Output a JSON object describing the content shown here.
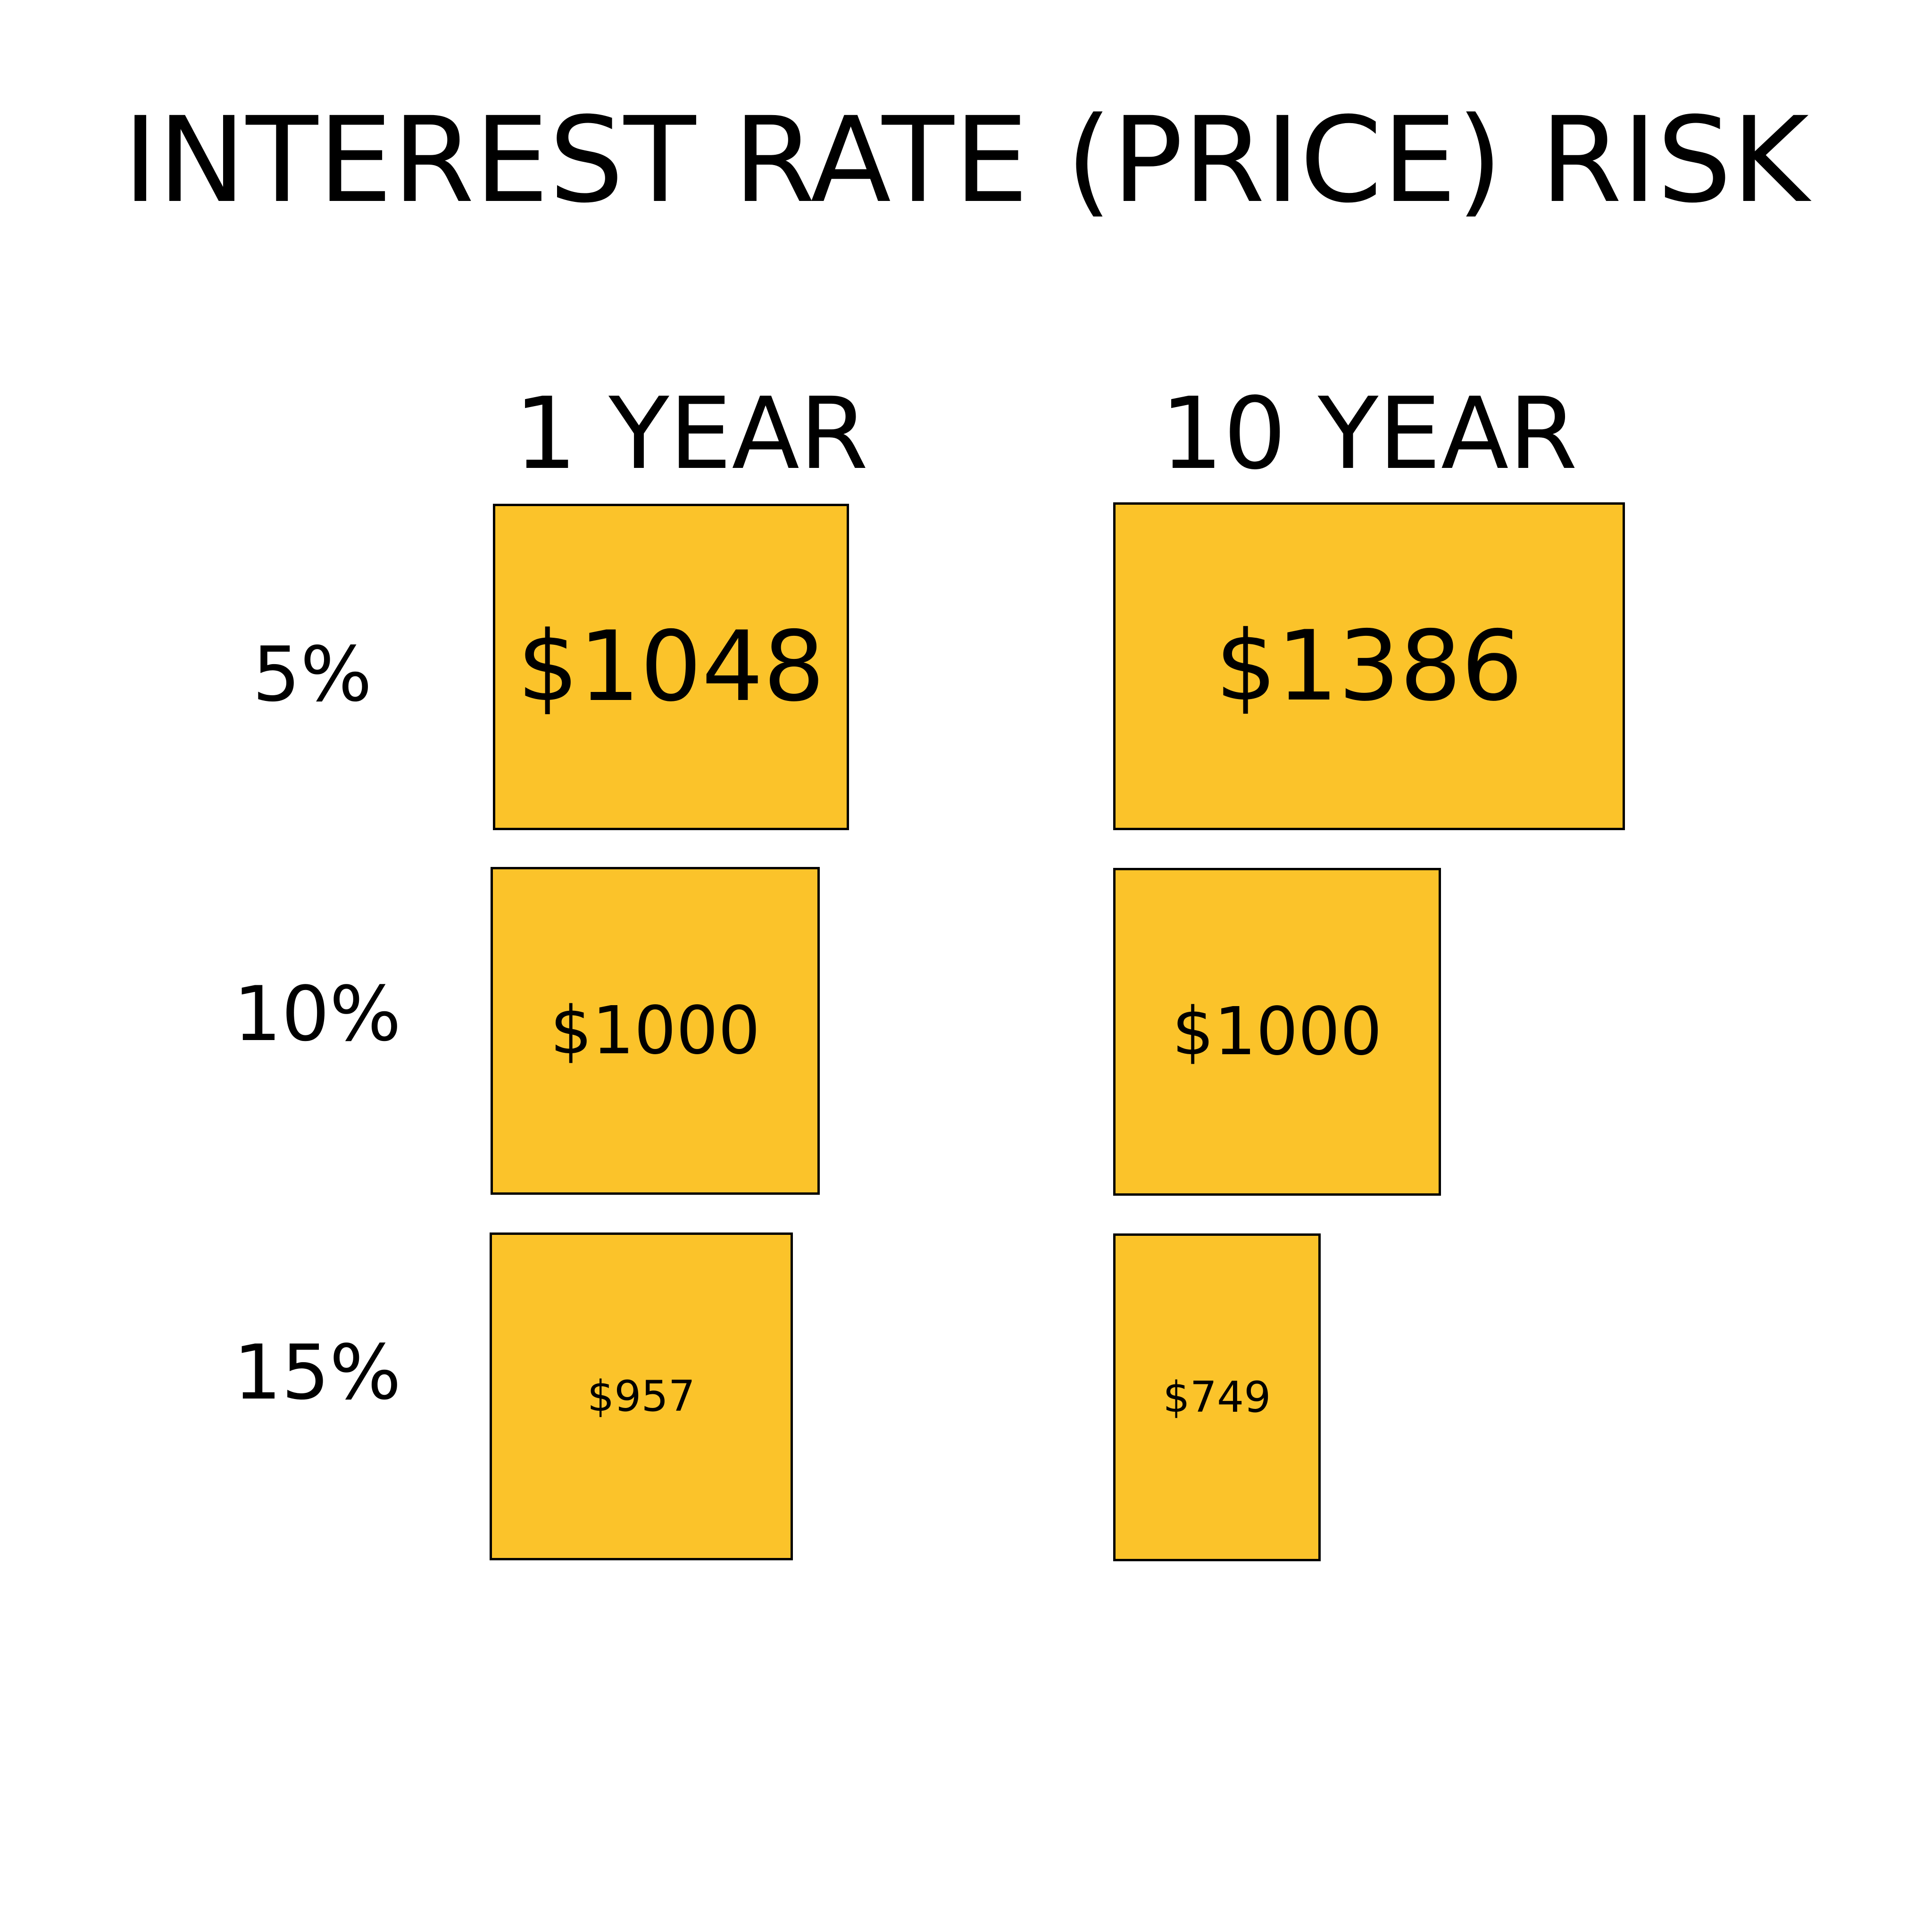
{
  "title": "INTEREST RATE (PRICE) RISK",
  "box_color": "#fbc32a",
  "columns": [
    "1 YEAR",
    "10 YEAR"
  ],
  "rows": [
    {
      "rate": "5%",
      "one_year": "$1048",
      "ten_year": "$1386"
    },
    {
      "rate": "10%",
      "one_year": "$1000",
      "ten_year": "$1000"
    },
    {
      "rate": "15%",
      "one_year": "$957",
      "ten_year": "$749"
    }
  ]
}
